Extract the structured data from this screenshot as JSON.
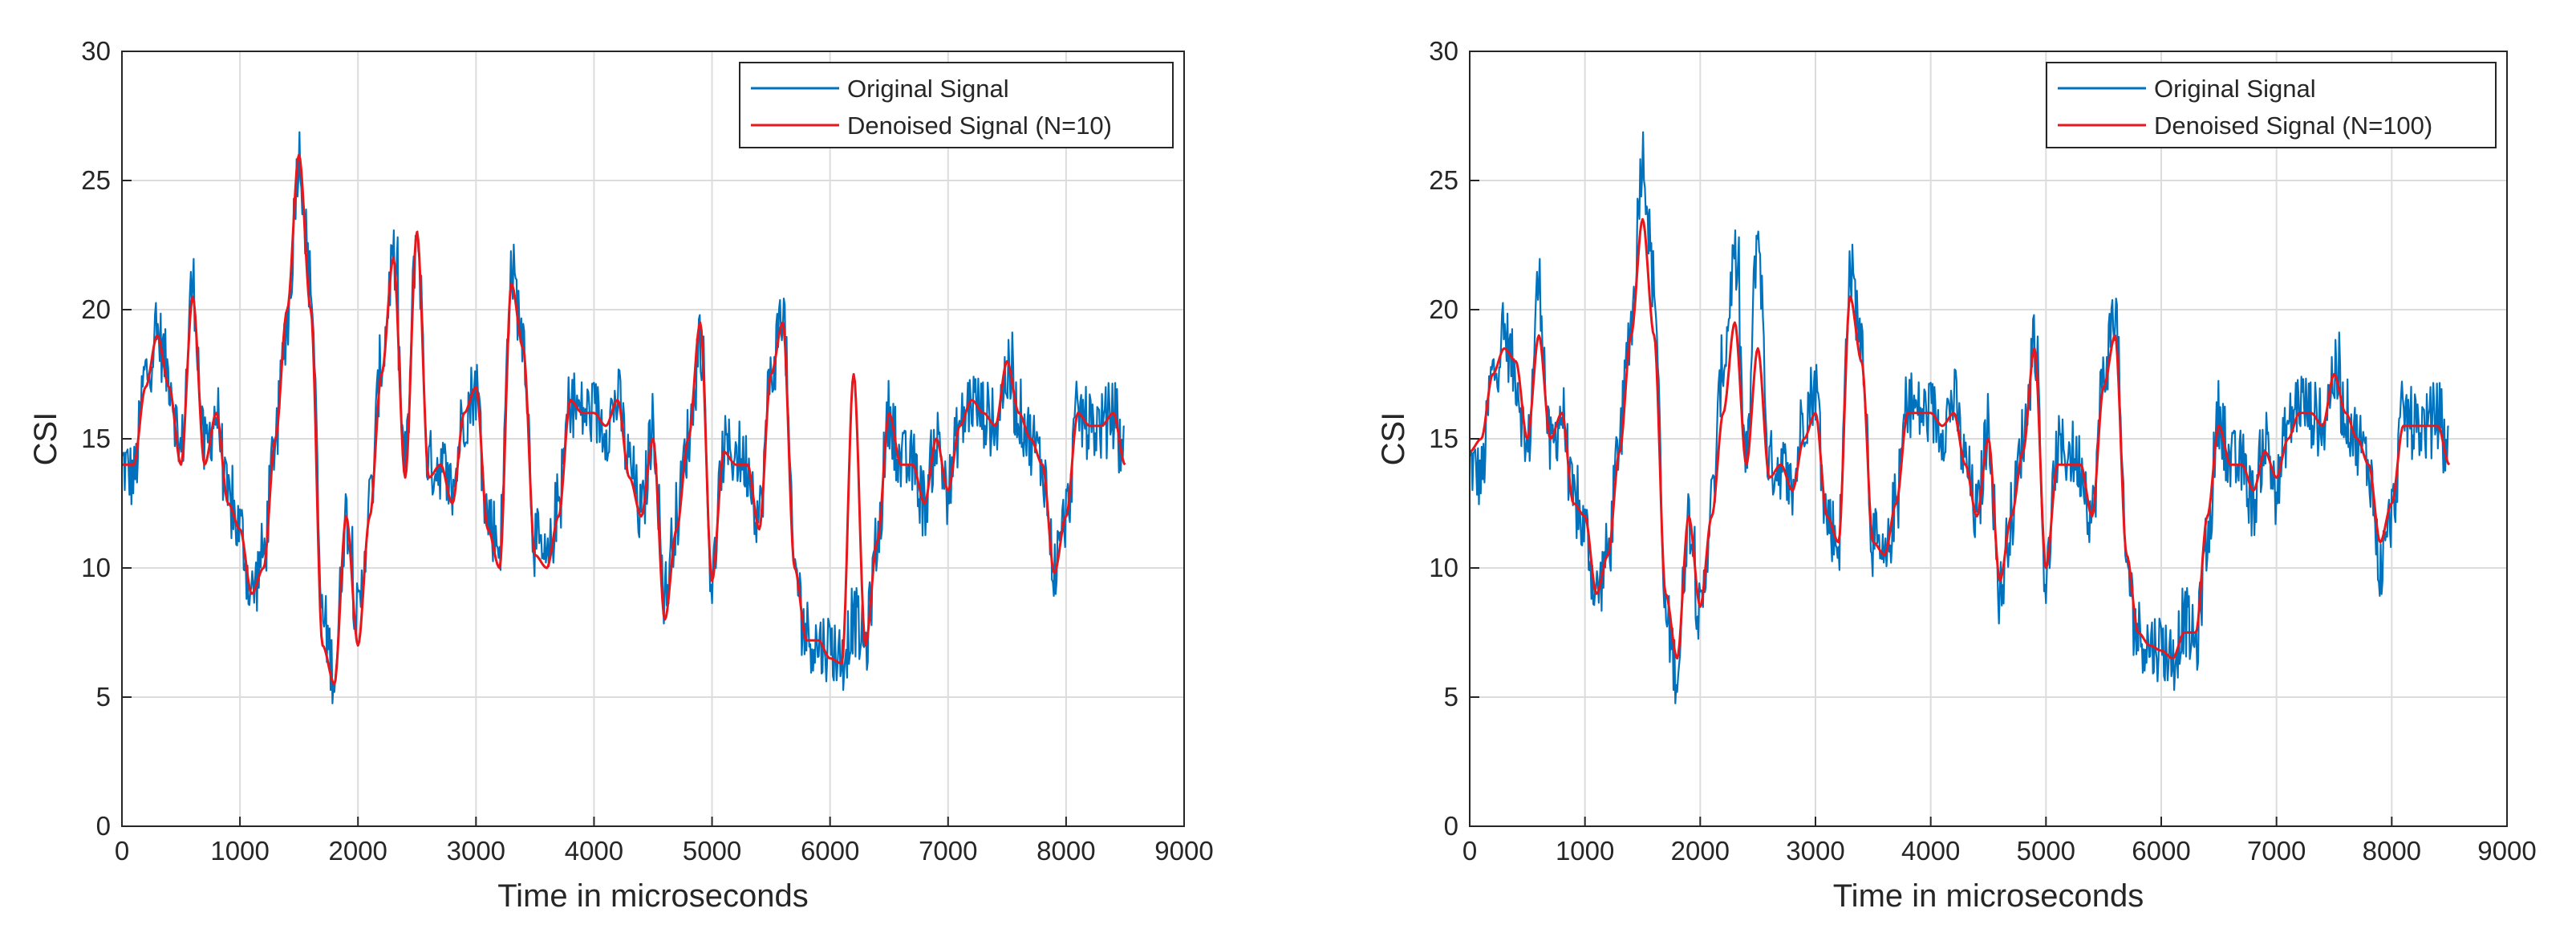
{
  "chart_data": [
    {
      "type": "line",
      "title": "",
      "xlabel": "Time in microseconds",
      "ylabel": "CSI",
      "xlim": [
        0,
        9000
      ],
      "ylim": [
        0,
        30
      ],
      "xticks": [
        0,
        1000,
        2000,
        3000,
        4000,
        5000,
        6000,
        7000,
        8000,
        9000
      ],
      "yticks": [
        0,
        5,
        10,
        15,
        20,
        25,
        30
      ],
      "grid": true,
      "legend_position": "top-right",
      "x": [
        0,
        100,
        200,
        300,
        400,
        500,
        600,
        700,
        800,
        900,
        1000,
        1100,
        1200,
        1300,
        1400,
        1500,
        1600,
        1700,
        1800,
        1900,
        2000,
        2100,
        2200,
        2300,
        2400,
        2500,
        2600,
        2700,
        2800,
        2900,
        3000,
        3100,
        3200,
        3300,
        3400,
        3500,
        3600,
        3700,
        3800,
        3900,
        4000,
        4100,
        4200,
        4300,
        4400,
        4500,
        4600,
        4700,
        4800,
        4900,
        5000,
        5100,
        5200,
        5300,
        5400,
        5500,
        5600,
        5700,
        5800,
        5900,
        6000,
        6100,
        6200,
        6300,
        6400,
        6500,
        6600,
        6700,
        6800,
        6900,
        7000,
        7100,
        7200,
        7300,
        7400,
        7500,
        7600,
        7700,
        7800,
        7900,
        8000,
        8100,
        8200,
        8300,
        8400,
        8500
      ],
      "series": [
        {
          "name": "Original Signal",
          "color": "#0072BD",
          "values": [
            14,
            13.5,
            17.5,
            19,
            17.5,
            14.5,
            21,
            14.5,
            16,
            12.5,
            11.5,
            9,
            10.5,
            15,
            19.5,
            26,
            21,
            8,
            6,
            12,
            8,
            12.5,
            18,
            22,
            14,
            23,
            14,
            14,
            13,
            16,
            17,
            12,
            11,
            21.5,
            19,
            11,
            10,
            12.5,
            16.5,
            16,
            16,
            15.5,
            16.5,
            14,
            12,
            15.5,
            9,
            12,
            15,
            19,
            9.5,
            14.5,
            14.5,
            14,
            12,
            17.5,
            20,
            10,
            7.5,
            7,
            7,
            6.5,
            8,
            7,
            11,
            16,
            14,
            14,
            12.5,
            15,
            13,
            15.5,
            16.5,
            16,
            15.5,
            17.5,
            16,
            15,
            14,
            10,
            12,
            16,
            15.5,
            15.5,
            16,
            14.5
          ]
        },
        {
          "name": "Denoised Signal (N=10)",
          "color": "#E8171B",
          "values": [
            14,
            14,
            17,
            19,
            17,
            14,
            20.5,
            14,
            16,
            12.5,
            11.5,
            9,
            10,
            15,
            20,
            26,
            20,
            7,
            5.5,
            12,
            7,
            12,
            17.5,
            22,
            13.5,
            23,
            13.5,
            14,
            12.5,
            16,
            17,
            11.5,
            10,
            21,
            18.5,
            10.5,
            10,
            12,
            16.5,
            16,
            16,
            15.5,
            16.5,
            13.5,
            12,
            15,
            8,
            11.5,
            15,
            19.5,
            9.5,
            14.5,
            14,
            14,
            11.5,
            17.5,
            19.5,
            10,
            7.2,
            7.2,
            6.5,
            6.3,
            17.5,
            7,
            11,
            16,
            14,
            14,
            12.5,
            15,
            13,
            15.5,
            16.5,
            16,
            15.5,
            18,
            16,
            15,
            14,
            9.8,
            12,
            16,
            15.5,
            15.5,
            16,
            14
          ]
        }
      ]
    },
    {
      "type": "line",
      "title": "",
      "xlabel": "Time in microseconds",
      "ylabel": "CSI",
      "xlim": [
        0,
        9000
      ],
      "ylim": [
        0,
        30
      ],
      "xticks": [
        0,
        1000,
        2000,
        3000,
        4000,
        5000,
        6000,
        7000,
        8000,
        9000
      ],
      "yticks": [
        0,
        5,
        10,
        15,
        20,
        25,
        30
      ],
      "grid": true,
      "legend_position": "top-right",
      "x": [
        0,
        100,
        200,
        300,
        400,
        500,
        600,
        700,
        800,
        900,
        1000,
        1100,
        1200,
        1300,
        1400,
        1500,
        1600,
        1700,
        1800,
        1900,
        2000,
        2100,
        2200,
        2300,
        2400,
        2500,
        2600,
        2700,
        2800,
        2900,
        3000,
        3100,
        3200,
        3300,
        3400,
        3500,
        3600,
        3700,
        3800,
        3900,
        4000,
        4100,
        4200,
        4300,
        4400,
        4500,
        4600,
        4700,
        4800,
        4900,
        5000,
        5100,
        5200,
        5300,
        5400,
        5500,
        5600,
        5700,
        5800,
        5900,
        6000,
        6100,
        6200,
        6300,
        6400,
        6500,
        6600,
        6700,
        6800,
        6900,
        7000,
        7100,
        7200,
        7300,
        7400,
        7500,
        7600,
        7700,
        7800,
        7900,
        8000,
        8100,
        8200,
        8300,
        8400,
        8500
      ],
      "series": [
        {
          "name": "Original Signal",
          "color": "#0072BD",
          "values": [
            14,
            13.5,
            17.5,
            19,
            17.5,
            14.5,
            21,
            14.5,
            16,
            12.5,
            11.5,
            9,
            10.5,
            15,
            19.5,
            26,
            21,
            8,
            6,
            12,
            8,
            12.5,
            18,
            22,
            14,
            23,
            14,
            14,
            13,
            16,
            17,
            12,
            11,
            21.5,
            19,
            11,
            10,
            12.5,
            16.5,
            16,
            16,
            15.5,
            16.5,
            14,
            12,
            15.5,
            9,
            12,
            15,
            19,
            9.5,
            14.5,
            14.5,
            14,
            12,
            17.5,
            20,
            10,
            7.5,
            7,
            7,
            6.5,
            8,
            7,
            11,
            16,
            14,
            14,
            12.5,
            15,
            13,
            15.5,
            16.5,
            16,
            15.5,
            17.5,
            16,
            15,
            14,
            10,
            12,
            16,
            15.5,
            15.5,
            16,
            14.5
          ]
        },
        {
          "name": "Denoised Signal (N=100)",
          "color": "#E8171B",
          "values": [
            14.5,
            15,
            17.5,
            18.5,
            18,
            15,
            19,
            15,
            16,
            12.5,
            12,
            9,
            10.5,
            14.5,
            19,
            23.5,
            19,
            9,
            6.5,
            12,
            8.5,
            12,
            16,
            19.5,
            14,
            18.5,
            13.5,
            14,
            13,
            15,
            16,
            12,
            11,
            20.5,
            18,
            11,
            10.5,
            12.5,
            16,
            16,
            16,
            15.5,
            16,
            14,
            12,
            15,
            9.5,
            12,
            14.5,
            18.5,
            10,
            14,
            14,
            14,
            12,
            17,
            19,
            10.5,
            7.5,
            7,
            6.8,
            6.5,
            7.5,
            7.5,
            12,
            15.5,
            14,
            14,
            13,
            14.5,
            13.5,
            15,
            16,
            16,
            15.5,
            17.5,
            16,
            15,
            14,
            11,
            12.5,
            15.5,
            15.5,
            15.5,
            15.5,
            14
          ]
        }
      ]
    }
  ]
}
